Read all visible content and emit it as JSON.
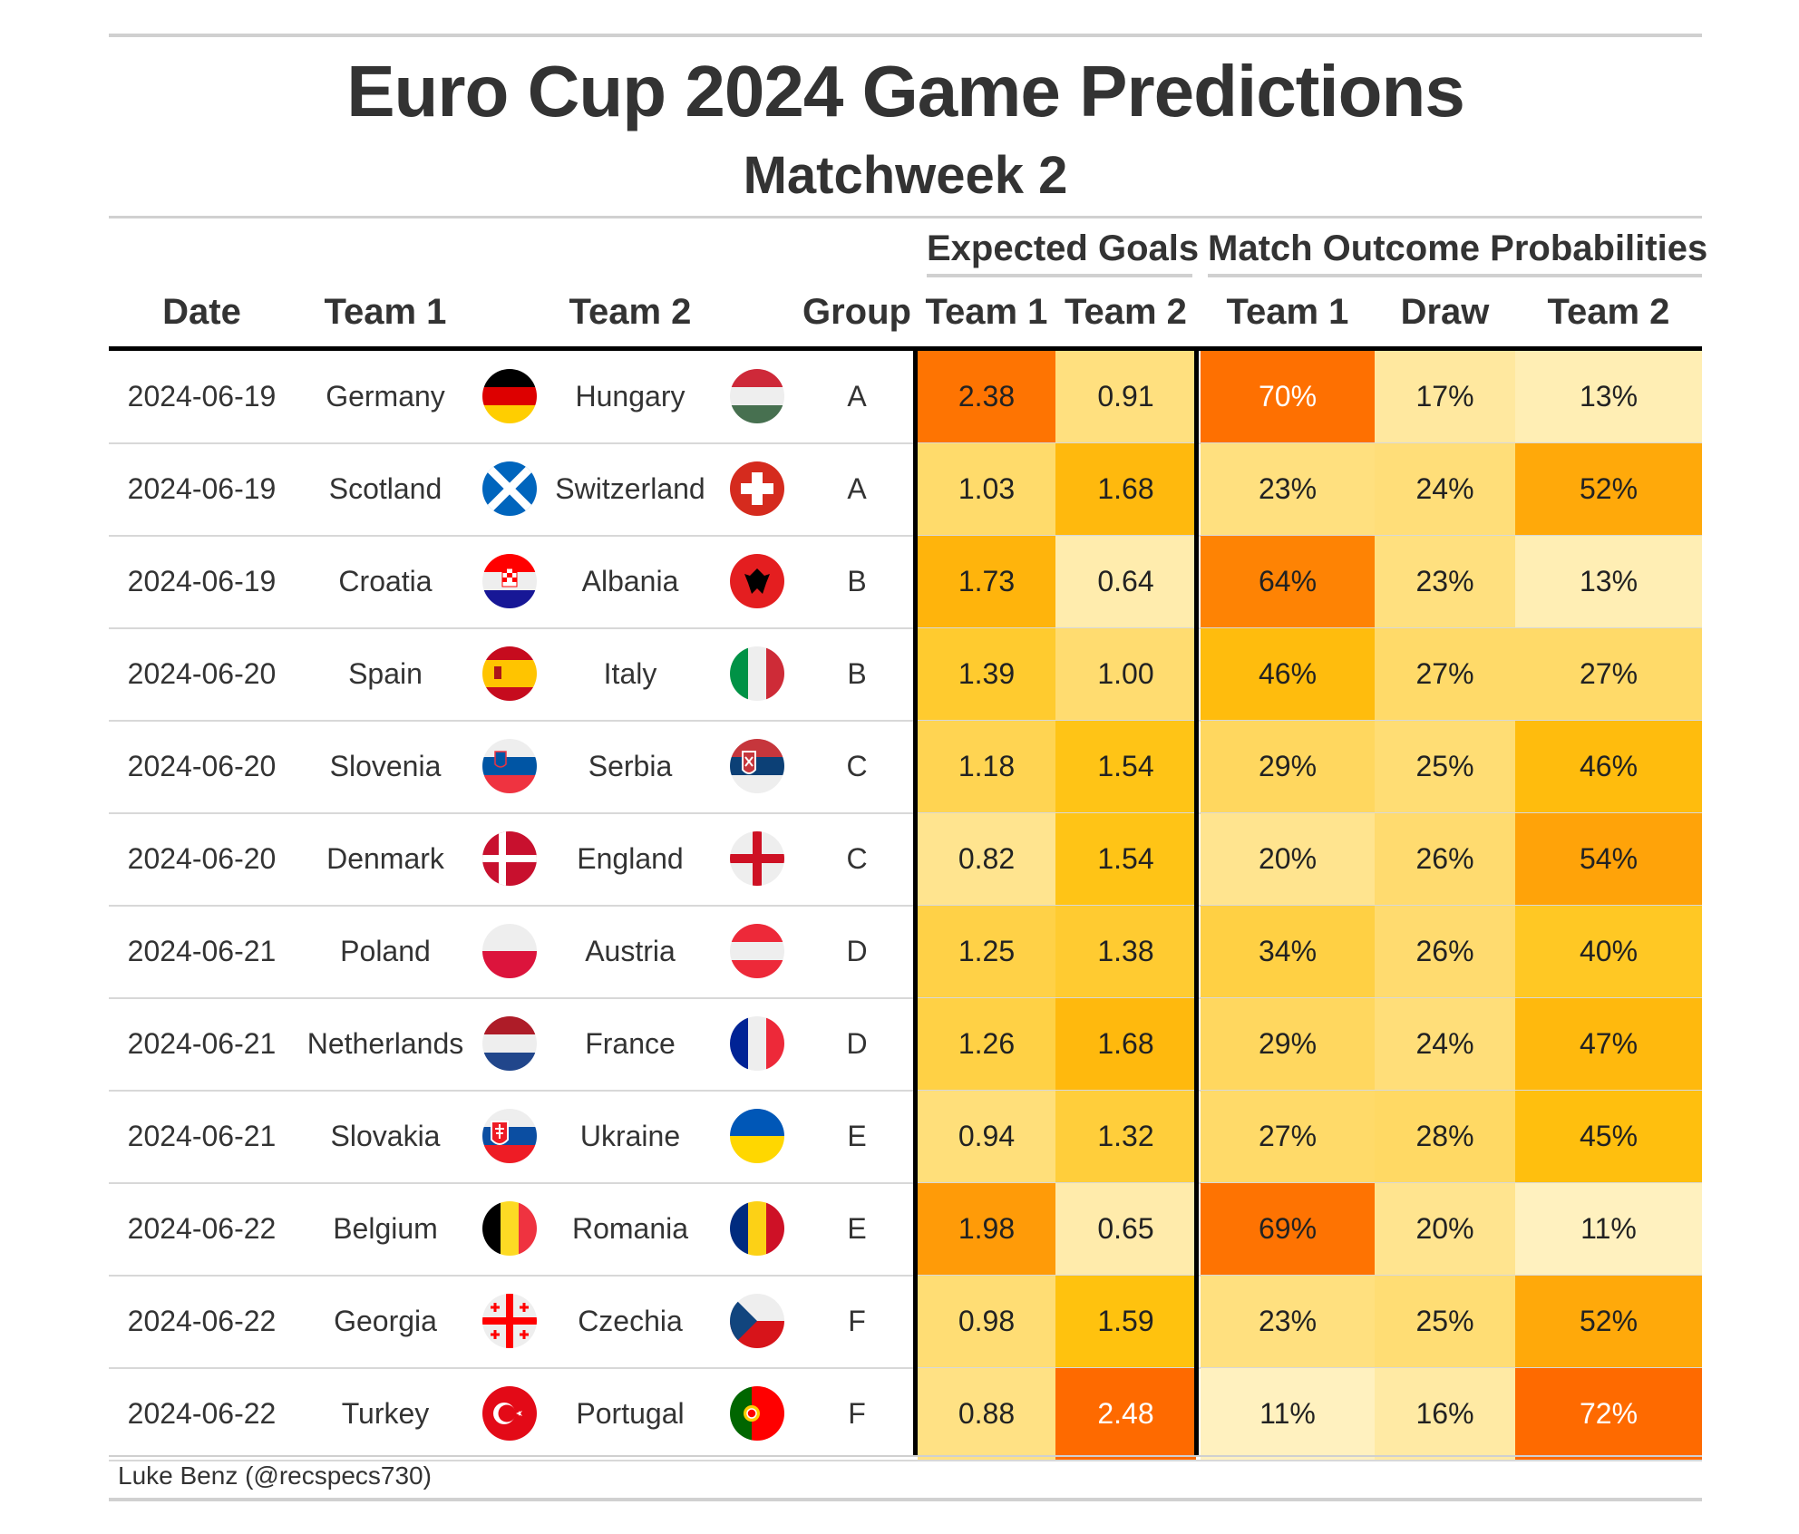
{
  "chart_data": {
    "type": "table",
    "title": "Euro Cup 2024 Game Predictions",
    "subtitle": "Matchweek 2",
    "spanners": {
      "expected_goals": "Expected Goals",
      "outcome": "Match Outcome Probabilities"
    },
    "columns": {
      "date": "Date",
      "team1": "Team 1",
      "team2": "Team 2",
      "group": "Group",
      "xg1": "Team 1",
      "xg2": "Team 2",
      "p1": "Team 1",
      "draw": "Draw",
      "p2": "Team 2"
    },
    "rows": [
      {
        "date": "2024-06-19",
        "team1": "Germany",
        "team2": "Hungary",
        "group": "A",
        "xg1": "2.38",
        "xg2": "0.91",
        "p1": "70%",
        "draw": "17%",
        "p2": "13%"
      },
      {
        "date": "2024-06-19",
        "team1": "Scotland",
        "team2": "Switzerland",
        "group": "A",
        "xg1": "1.03",
        "xg2": "1.68",
        "p1": "23%",
        "draw": "24%",
        "p2": "52%"
      },
      {
        "date": "2024-06-19",
        "team1": "Croatia",
        "team2": "Albania",
        "group": "B",
        "xg1": "1.73",
        "xg2": "0.64",
        "p1": "64%",
        "draw": "23%",
        "p2": "13%"
      },
      {
        "date": "2024-06-20",
        "team1": "Spain",
        "team2": "Italy",
        "group": "B",
        "xg1": "1.39",
        "xg2": "1.00",
        "p1": "46%",
        "draw": "27%",
        "p2": "27%"
      },
      {
        "date": "2024-06-20",
        "team1": "Slovenia",
        "team2": "Serbia",
        "group": "C",
        "xg1": "1.18",
        "xg2": "1.54",
        "p1": "29%",
        "draw": "25%",
        "p2": "46%"
      },
      {
        "date": "2024-06-20",
        "team1": "Denmark",
        "team2": "England",
        "group": "C",
        "xg1": "0.82",
        "xg2": "1.54",
        "p1": "20%",
        "draw": "26%",
        "p2": "54%"
      },
      {
        "date": "2024-06-21",
        "team1": "Poland",
        "team2": "Austria",
        "group": "D",
        "xg1": "1.25",
        "xg2": "1.38",
        "p1": "34%",
        "draw": "26%",
        "p2": "40%"
      },
      {
        "date": "2024-06-21",
        "team1": "Netherlands",
        "team2": "France",
        "group": "D",
        "xg1": "1.26",
        "xg2": "1.68",
        "p1": "29%",
        "draw": "24%",
        "p2": "47%"
      },
      {
        "date": "2024-06-21",
        "team1": "Slovakia",
        "team2": "Ukraine",
        "group": "E",
        "xg1": "0.94",
        "xg2": "1.32",
        "p1": "27%",
        "draw": "28%",
        "p2": "45%"
      },
      {
        "date": "2024-06-22",
        "team1": "Belgium",
        "team2": "Romania",
        "group": "E",
        "xg1": "1.98",
        "xg2": "0.65",
        "p1": "69%",
        "draw": "20%",
        "p2": "11%"
      },
      {
        "date": "2024-06-22",
        "team1": "Georgia",
        "team2": "Czechia",
        "group": "F",
        "xg1": "0.98",
        "xg2": "1.59",
        "p1": "23%",
        "draw": "25%",
        "p2": "52%"
      },
      {
        "date": "2024-06-22",
        "team1": "Turkey",
        "team2": "Portugal",
        "group": "F",
        "xg1": "0.88",
        "xg2": "2.48",
        "p1": "11%",
        "draw": "16%",
        "p2": "72%"
      }
    ],
    "color_scale": {
      "low": "#fff2c4",
      "mid": "#ffc20e",
      "high": "#fe6a00"
    },
    "footer": "Luke Benz (@recspecs730)"
  }
}
